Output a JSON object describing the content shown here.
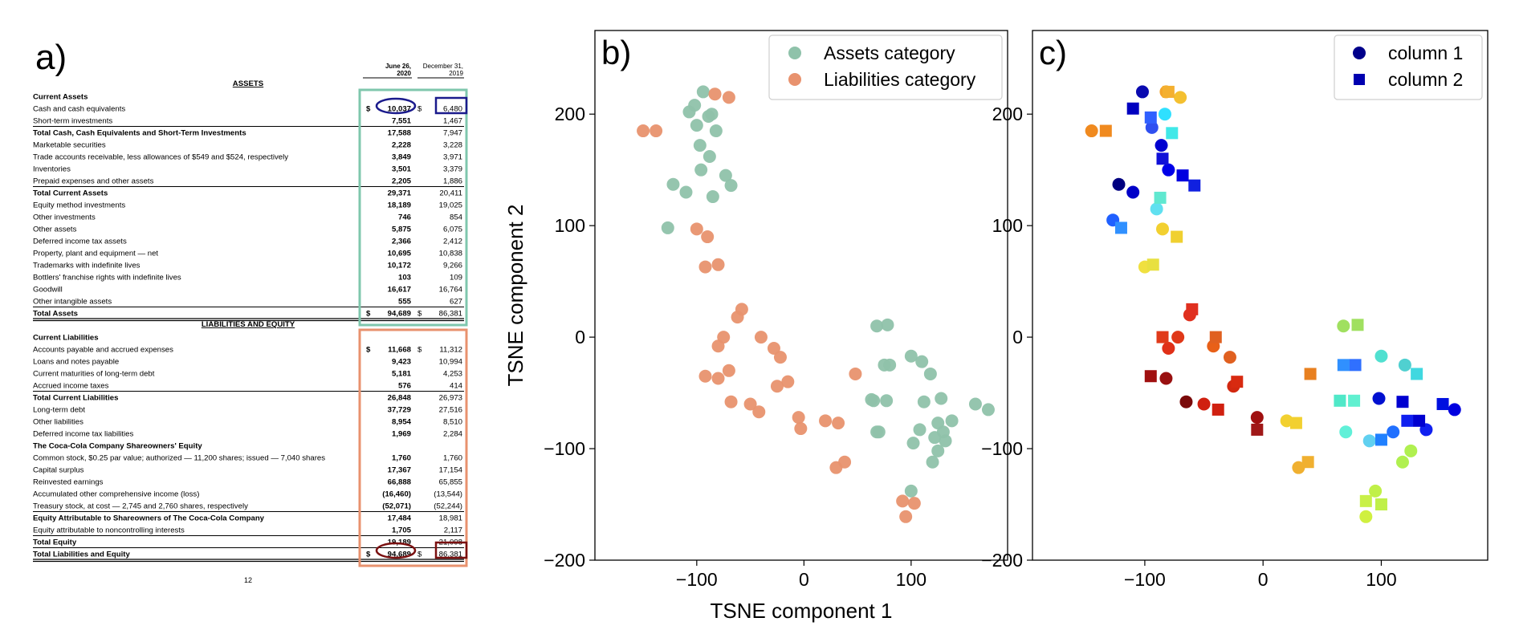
{
  "panels": {
    "a": "a)",
    "b": "b)",
    "c": "c)"
  },
  "balance_sheet": {
    "column_headers": [
      "June 26, 2020",
      "December 31, 2019"
    ],
    "column_headers_lines": [
      [
        "June 26,",
        "2020"
      ],
      [
        "December 31,",
        "2019"
      ]
    ],
    "assets_heading": "ASSETS",
    "liabilities_heading": "LIABILITIES AND EQUITY",
    "page_number": "12",
    "rows": [
      {
        "label": "Current Assets",
        "bold": true,
        "section": "assets",
        "v1": "",
        "v2": ""
      },
      {
        "label": "Cash and cash equivalents",
        "bold": false,
        "section": "assets",
        "dollar": true,
        "v1": "10,037",
        "v2": "6,480"
      },
      {
        "label": "Short-term investments",
        "bold": false,
        "section": "assets",
        "v1": "7,551",
        "v2": "1,467"
      },
      {
        "label": "Total Cash, Cash Equivalents and Short-Term Investments",
        "bold": true,
        "section": "assets",
        "v1": "17,588",
        "v2": "7,947"
      },
      {
        "label": "Marketable securities",
        "bold": false,
        "section": "assets",
        "v1": "2,228",
        "v2": "3,228"
      },
      {
        "label": "Trade accounts receivable, less allowances of $549 and $524, respectively",
        "bold": false,
        "section": "assets",
        "v1": "3,849",
        "v2": "3,971"
      },
      {
        "label": "Inventories",
        "bold": false,
        "section": "assets",
        "v1": "3,501",
        "v2": "3,379"
      },
      {
        "label": "Prepaid expenses and other assets",
        "bold": false,
        "section": "assets",
        "v1": "2,205",
        "v2": "1,886"
      },
      {
        "label": "Total Current Assets",
        "bold": true,
        "section": "assets",
        "v1": "29,371",
        "v2": "20,411"
      },
      {
        "label": "Equity method investments",
        "bold": false,
        "section": "assets",
        "v1": "18,189",
        "v2": "19,025"
      },
      {
        "label": "Other investments",
        "bold": false,
        "section": "assets",
        "v1": "746",
        "v2": "854"
      },
      {
        "label": "Other assets",
        "bold": false,
        "section": "assets",
        "v1": "5,875",
        "v2": "6,075"
      },
      {
        "label": "Deferred income tax assets",
        "bold": false,
        "section": "assets",
        "v1": "2,366",
        "v2": "2,412"
      },
      {
        "label": "Property, plant and equipment — net",
        "bold": false,
        "section": "assets",
        "v1": "10,695",
        "v2": "10,838"
      },
      {
        "label": "Trademarks with indefinite lives",
        "bold": false,
        "section": "assets",
        "v1": "10,172",
        "v2": "9,266"
      },
      {
        "label": "Bottlers' franchise rights with indefinite lives",
        "bold": false,
        "section": "assets",
        "v1": "103",
        "v2": "109"
      },
      {
        "label": "Goodwill",
        "bold": false,
        "section": "assets",
        "v1": "16,617",
        "v2": "16,764"
      },
      {
        "label": "Other intangible assets",
        "bold": false,
        "section": "assets",
        "v1": "555",
        "v2": "627"
      },
      {
        "label": "Total Assets",
        "bold": true,
        "section": "assets",
        "dollar": true,
        "v1": "94,689",
        "v2": "86,381"
      },
      {
        "label": "Current Liabilities",
        "bold": true,
        "section": "liabilities",
        "v1": "",
        "v2": ""
      },
      {
        "label": "Accounts payable and accrued expenses",
        "bold": false,
        "section": "liabilities",
        "dollar": true,
        "v1": "11,668",
        "v2": "11,312"
      },
      {
        "label": "Loans and notes payable",
        "bold": false,
        "section": "liabilities",
        "v1": "9,423",
        "v2": "10,994"
      },
      {
        "label": "Current maturities of long-term debt",
        "bold": false,
        "section": "liabilities",
        "v1": "5,181",
        "v2": "4,253"
      },
      {
        "label": "Accrued income taxes",
        "bold": false,
        "section": "liabilities",
        "v1": "576",
        "v2": "414"
      },
      {
        "label": "Total Current Liabilities",
        "bold": true,
        "section": "liabilities",
        "v1": "26,848",
        "v2": "26,973"
      },
      {
        "label": "Long-term debt",
        "bold": false,
        "section": "liabilities",
        "v1": "37,729",
        "v2": "27,516"
      },
      {
        "label": "Other liabilities",
        "bold": false,
        "section": "liabilities",
        "v1": "8,954",
        "v2": "8,510"
      },
      {
        "label": "Deferred income tax liabilities",
        "bold": false,
        "section": "liabilities",
        "v1": "1,969",
        "v2": "2,284"
      },
      {
        "label": "The Coca-Cola Company Shareowners' Equity",
        "bold": true,
        "section": "liabilities",
        "v1": "",
        "v2": ""
      },
      {
        "label": "Common stock, $0.25 par value; authorized — 11,200 shares; issued — 7,040 shares",
        "bold": false,
        "section": "liabilities",
        "v1": "1,760",
        "v2": "1,760"
      },
      {
        "label": "Capital surplus",
        "bold": false,
        "section": "liabilities",
        "v1": "17,367",
        "v2": "17,154"
      },
      {
        "label": "Reinvested earnings",
        "bold": false,
        "section": "liabilities",
        "v1": "66,888",
        "v2": "65,855"
      },
      {
        "label": "Accumulated other comprehensive income (loss)",
        "bold": false,
        "section": "liabilities",
        "v1": "(16,460)",
        "v2": "(13,544)"
      },
      {
        "label": "Treasury stock, at cost — 2,745 and 2,760 shares, respectively",
        "bold": false,
        "section": "liabilities",
        "v1": "(52,071)",
        "v2": "(52,244)"
      },
      {
        "label": "Equity Attributable to Shareowners of The Coca-Cola Company",
        "bold": true,
        "section": "liabilities",
        "v1": "17,484",
        "v2": "18,981"
      },
      {
        "label": "Equity attributable to noncontrolling interests",
        "bold": false,
        "section": "liabilities",
        "v1": "1,705",
        "v2": "2,117"
      },
      {
        "label": "Total Equity",
        "bold": true,
        "section": "liabilities",
        "v1": "19,189",
        "v2": "21,098"
      },
      {
        "label": "Total Liabilities and Equity",
        "bold": true,
        "section": "liabilities",
        "dollar": true,
        "v1": "94,689",
        "v2": "86,381"
      }
    ]
  },
  "chart_data": [
    {
      "type": "scatter",
      "panel": "b)",
      "title": "",
      "xlabel": "TSNE component 1",
      "ylabel": "TSNE component 2",
      "xlim": [
        -195,
        190
      ],
      "ylim": [
        -200,
        275
      ],
      "xticks": [
        -100,
        0,
        100
      ],
      "xtick_labels": [
        "−100",
        "0",
        "100"
      ],
      "yticks": [
        -200,
        -100,
        0,
        100,
        200
      ],
      "ytick_labels": [
        "−200",
        "−100",
        "0",
        "100",
        "200"
      ],
      "legend_position": "top-right",
      "series": [
        {
          "name": "Assets category",
          "color": "#8fc2aa",
          "x": [
            -102,
            -94,
            -107,
            -100,
            -89,
            -97,
            -86,
            -82,
            -88,
            -96,
            -73,
            -85,
            -68,
            -122,
            -110,
            -127,
            68,
            78,
            75,
            80,
            65,
            77,
            63,
            68,
            70,
            100,
            110,
            118,
            128,
            112,
            125,
            130,
            138,
            160,
            172,
            108,
            122,
            125,
            120,
            132,
            102,
            100
          ],
          "y": [
            208,
            220,
            202,
            190,
            198,
            172,
            200,
            185,
            162,
            150,
            145,
            126,
            136,
            137,
            130,
            98,
            10,
            11,
            -25,
            -25,
            -57,
            -57,
            -56,
            -85,
            -85,
            -17,
            -22,
            -33,
            -55,
            -58,
            -77,
            -85,
            -75,
            -60,
            -65,
            -83,
            -90,
            -102,
            -112,
            -93,
            -95,
            -138
          ]
        },
        {
          "name": "Liabilities category",
          "color": "#e8926e",
          "x": [
            -150,
            -138,
            -83,
            -70,
            -92,
            -80,
            -100,
            -90,
            -58,
            -62,
            -75,
            -80,
            -70,
            -92,
            -80,
            -68,
            -50,
            -42,
            -40,
            -28,
            -22,
            -25,
            -15,
            -5,
            -3,
            20,
            32,
            48,
            30,
            38,
            92,
            103,
            95
          ],
          "y": [
            185,
            185,
            218,
            215,
            63,
            65,
            97,
            90,
            25,
            18,
            0,
            -8,
            -30,
            -35,
            -37,
            -58,
            -60,
            -67,
            0,
            -10,
            -18,
            -44,
            -40,
            -72,
            -82,
            -75,
            -77,
            -33,
            -117,
            -112,
            -147,
            -149,
            -161
          ]
        }
      ]
    },
    {
      "type": "scatter",
      "panel": "c)",
      "title": "",
      "xlabel": "",
      "ylabel": "",
      "xlim": [
        -195,
        190
      ],
      "ylim": [
        -200,
        275
      ],
      "xticks": [
        -100,
        0,
        100
      ],
      "xtick_labels": [
        "−100",
        "0",
        "100"
      ],
      "yticks": [
        -200,
        -100,
        0,
        100,
        200
      ],
      "ytick_labels": [
        "−200",
        "−100",
        "0",
        "100",
        "200"
      ],
      "legend_position": "top-right",
      "series": [
        {
          "name": "column 1",
          "marker": "circle",
          "legend_color": "#00008b",
          "points": [
            {
              "x": -102,
              "y": 220,
              "c": "#0a0ab0"
            },
            {
              "x": -94,
              "y": 188,
              "c": "#2f4ff0"
            },
            {
              "x": -86,
              "y": 172,
              "c": "#0000d0"
            },
            {
              "x": -80,
              "y": 150,
              "c": "#0000e8"
            },
            {
              "x": -122,
              "y": 137,
              "c": "#000080"
            },
            {
              "x": -110,
              "y": 130,
              "c": "#0000c8"
            },
            {
              "x": -127,
              "y": 105,
              "c": "#2060ff"
            },
            {
              "x": -90,
              "y": 115,
              "c": "#60e0f0"
            },
            {
              "x": -83,
              "y": 200,
              "c": "#2fe0ff"
            },
            {
              "x": -82,
              "y": 220,
              "c": "#f4a52a"
            },
            {
              "x": -70,
              "y": 215,
              "c": "#f4c030"
            },
            {
              "x": -85,
              "y": 97,
              "c": "#f2d030"
            },
            {
              "x": -100,
              "y": 63,
              "c": "#f0e040"
            },
            {
              "x": -145,
              "y": 185,
              "c": "#f08a1f"
            },
            {
              "x": -62,
              "y": 20,
              "c": "#e0301e"
            },
            {
              "x": -72,
              "y": 0,
              "c": "#e03818"
            },
            {
              "x": -80,
              "y": -10,
              "c": "#e03018"
            },
            {
              "x": -82,
              "y": -37,
              "c": "#991010"
            },
            {
              "x": -65,
              "y": -58,
              "c": "#7a0a0a"
            },
            {
              "x": -50,
              "y": -60,
              "c": "#d02010"
            },
            {
              "x": -42,
              "y": -8,
              "c": "#e86018"
            },
            {
              "x": -28,
              "y": -18,
              "c": "#e06020"
            },
            {
              "x": -25,
              "y": -44,
              "c": "#d22810"
            },
            {
              "x": -5,
              "y": -72,
              "c": "#a01010"
            },
            {
              "x": 30,
              "y": -117,
              "c": "#f0b030"
            },
            {
              "x": 20,
              "y": -75,
              "c": "#f2d030"
            },
            {
              "x": 68,
              "y": 10,
              "c": "#a0e060"
            },
            {
              "x": 100,
              "y": -17,
              "c": "#50e0d0"
            },
            {
              "x": 120,
              "y": -25,
              "c": "#50d0d0"
            },
            {
              "x": 98,
              "y": -55,
              "c": "#0010d0"
            },
            {
              "x": 162,
              "y": -65,
              "c": "#0000e0"
            },
            {
              "x": 138,
              "y": -83,
              "c": "#1020f0"
            },
            {
              "x": 110,
              "y": -85,
              "c": "#2070ff"
            },
            {
              "x": 90,
              "y": -93,
              "c": "#60d0f0"
            },
            {
              "x": 70,
              "y": -85,
              "c": "#60f0d8"
            },
            {
              "x": 125,
              "y": -102,
              "c": "#b0f050"
            },
            {
              "x": 118,
              "y": -112,
              "c": "#b0f050"
            },
            {
              "x": 95,
              "y": -138,
              "c": "#c0f048"
            },
            {
              "x": 87,
              "y": -161,
              "c": "#d0f040"
            }
          ]
        },
        {
          "name": "column 2",
          "marker": "square",
          "legend_color": "#0000b0",
          "points": [
            {
              "x": -110,
              "y": 205,
              "c": "#0000c0"
            },
            {
              "x": -95,
              "y": 197,
              "c": "#3060ff"
            },
            {
              "x": -85,
              "y": 160,
              "c": "#1010d8"
            },
            {
              "x": -68,
              "y": 145,
              "c": "#0000e0"
            },
            {
              "x": -58,
              "y": 136,
              "c": "#1020e0"
            },
            {
              "x": -87,
              "y": 125,
              "c": "#60e8d0"
            },
            {
              "x": -77,
              "y": 183,
              "c": "#40e8e8"
            },
            {
              "x": -120,
              "y": 98,
              "c": "#3090ff"
            },
            {
              "x": -93,
              "y": 65,
              "c": "#e8e040"
            },
            {
              "x": -133,
              "y": 185,
              "c": "#f08a1f"
            },
            {
              "x": -80,
              "y": 220,
              "c": "#f4b030"
            },
            {
              "x": -73,
              "y": 90,
              "c": "#f0d030"
            },
            {
              "x": -60,
              "y": 25,
              "c": "#e03020"
            },
            {
              "x": -85,
              "y": 0,
              "c": "#e03a1a"
            },
            {
              "x": -95,
              "y": -35,
              "c": "#a01010"
            },
            {
              "x": -40,
              "y": 0,
              "c": "#e06020"
            },
            {
              "x": -38,
              "y": -65,
              "c": "#d02010"
            },
            {
              "x": -22,
              "y": -40,
              "c": "#d82a10"
            },
            {
              "x": -5,
              "y": -83,
              "c": "#a01818"
            },
            {
              "x": 40,
              "y": -33,
              "c": "#e88020"
            },
            {
              "x": 38,
              "y": -112,
              "c": "#f0b030"
            },
            {
              "x": 28,
              "y": -77,
              "c": "#f2d030"
            },
            {
              "x": 80,
              "y": 11,
              "c": "#a0e060"
            },
            {
              "x": 78,
              "y": -25,
              "c": "#3070ff"
            },
            {
              "x": 68,
              "y": -25,
              "c": "#3090ff"
            },
            {
              "x": 65,
              "y": -57,
              "c": "#50e8c8"
            },
            {
              "x": 77,
              "y": -57,
              "c": "#60f0d0"
            },
            {
              "x": 118,
              "y": -58,
              "c": "#0000d0"
            },
            {
              "x": 152,
              "y": -60,
              "c": "#0010e0"
            },
            {
              "x": 130,
              "y": -33,
              "c": "#40d8e0"
            },
            {
              "x": 122,
              "y": -75,
              "c": "#1020f0"
            },
            {
              "x": 132,
              "y": -75,
              "c": "#0000d0"
            },
            {
              "x": 100,
              "y": -92,
              "c": "#2080ff"
            },
            {
              "x": 87,
              "y": -147,
              "c": "#c8f048"
            },
            {
              "x": 100,
              "y": -150,
              "c": "#c0f048"
            }
          ]
        }
      ]
    }
  ]
}
